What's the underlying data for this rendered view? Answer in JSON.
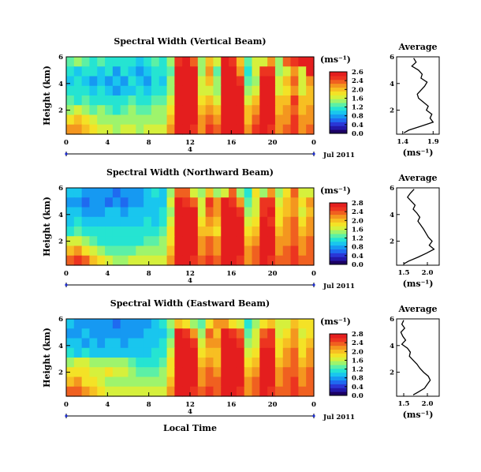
{
  "chart_data": {
    "type": "heatmap",
    "date_label": "Jul 2011",
    "xlabel": "Local Time",
    "colorbar_label": "(ms⁻¹)",
    "colormap": [
      "#1c0064",
      "#2318a8",
      "#2a37d6",
      "#1f6af0",
      "#1699f2",
      "#19c6ee",
      "#25e4d2",
      "#5cf0a6",
      "#9ef46c",
      "#d6f03c",
      "#f4e226",
      "#f7bf22",
      "#f4961f",
      "#f06020",
      "#ec3420",
      "#e41e1e"
    ],
    "panels": [
      {
        "title": "Spectral Width (Vertical Beam)",
        "ylabel": "Height (km)",
        "x_ticks": [
          "0",
          "4",
          "8",
          "12",
          "16",
          "20",
          "0"
        ],
        "x_range": [
          0,
          24
        ],
        "y_ticks": [
          "6",
          "4",
          "2"
        ],
        "y_range": [
          0.2,
          6.0
        ],
        "sub_axis_label": "4",
        "colorbar_ticks": [
          "2.6",
          "2.4",
          "2.0",
          "1.6",
          "1.2",
          "0.8",
          "0.4",
          "0.0"
        ],
        "colorbar_range": [
          0.0,
          2.6
        ],
        "heat_rows": [
          [
            1.2,
            1.3,
            1.2,
            1.1,
            1.2,
            1.1,
            1.0,
            1.1,
            1.0,
            0.9,
            1.0,
            1.2,
            1.1,
            1.4,
            2.4,
            2.6,
            2.2,
            1.4,
            1.9,
            1.6,
            2.5,
            2.3,
            1.8,
            1.2,
            1.5,
            1.6,
            2.1,
            1.4,
            2.2,
            2.4,
            2.5,
            2.6
          ],
          [
            1.0,
            0.9,
            1.1,
            1.0,
            0.9,
            1.0,
            0.8,
            1.0,
            0.9,
            0.8,
            0.9,
            1.0,
            1.0,
            1.2,
            2.5,
            2.6,
            2.5,
            1.3,
            2.0,
            1.2,
            2.6,
            2.5,
            2.0,
            1.0,
            1.5,
            2.4,
            2.3,
            1.3,
            1.6,
            2.0,
            1.6,
            2.6
          ],
          [
            0.9,
            1.0,
            0.9,
            0.8,
            0.9,
            0.8,
            0.9,
            0.8,
            1.0,
            0.9,
            0.8,
            1.0,
            0.9,
            1.3,
            2.6,
            2.6,
            2.6,
            1.6,
            1.8,
            1.3,
            2.6,
            2.6,
            2.4,
            1.2,
            1.4,
            2.5,
            2.6,
            1.6,
            1.8,
            2.2,
            1.5,
            2.0
          ],
          [
            1.0,
            1.1,
            1.0,
            0.9,
            1.0,
            0.9,
            0.8,
            0.9,
            0.9,
            1.0,
            0.9,
            1.1,
            1.0,
            1.4,
            2.6,
            2.6,
            2.6,
            1.5,
            1.6,
            1.4,
            2.6,
            2.6,
            2.6,
            1.4,
            1.6,
            2.6,
            2.5,
            1.5,
            1.7,
            2.1,
            1.6,
            1.8
          ],
          [
            1.2,
            1.1,
            1.2,
            1.0,
            1.1,
            1.0,
            1.0,
            1.1,
            1.2,
            1.1,
            1.0,
            1.2,
            1.2,
            1.6,
            2.6,
            2.6,
            2.6,
            1.7,
            1.8,
            1.6,
            2.6,
            2.6,
            2.6,
            1.5,
            1.9,
            2.6,
            2.6,
            1.8,
            1.9,
            2.3,
            1.8,
            1.9
          ],
          [
            1.4,
            1.5,
            1.3,
            1.2,
            1.3,
            1.2,
            1.1,
            1.2,
            1.3,
            1.2,
            1.2,
            1.3,
            1.3,
            1.7,
            2.6,
            2.6,
            2.6,
            1.9,
            2.0,
            1.8,
            2.6,
            2.6,
            2.6,
            1.8,
            2.1,
            2.6,
            2.6,
            1.9,
            2.0,
            2.2,
            1.9,
            2.0
          ],
          [
            1.7,
            1.8,
            1.7,
            1.5,
            1.4,
            1.3,
            1.3,
            1.4,
            1.4,
            1.3,
            1.3,
            1.4,
            1.4,
            1.8,
            2.6,
            2.6,
            2.5,
            2.0,
            2.2,
            2.1,
            2.6,
            2.6,
            2.6,
            1.9,
            2.2,
            2.6,
            2.5,
            2.0,
            2.1,
            2.3,
            2.0,
            2.1
          ],
          [
            2.0,
            2.1,
            1.9,
            1.7,
            1.6,
            1.5,
            1.4,
            1.5,
            1.5,
            1.4,
            1.5,
            1.5,
            1.6,
            2.0,
            2.5,
            2.6,
            2.4,
            2.1,
            2.3,
            2.2,
            2.6,
            2.6,
            2.5,
            2.0,
            2.3,
            2.6,
            2.4,
            2.1,
            2.2,
            2.3,
            2.1,
            2.2
          ]
        ],
        "average_profile": {
          "title": "Average",
          "xlabel": "(ms⁻¹)",
          "x_ticks": [
            "1.4",
            "1.9"
          ],
          "x_range": [
            1.3,
            2.0
          ],
          "y_ticks": [
            "6",
            "4",
            "2"
          ],
          "y_range": [
            0.2,
            6.0
          ],
          "height": [
            5.9,
            5.6,
            5.3,
            5.0,
            4.7,
            4.4,
            4.1,
            3.8,
            3.5,
            3.2,
            2.9,
            2.6,
            2.3,
            2.0,
            1.7,
            1.4,
            1.1,
            0.8,
            0.5,
            0.3
          ],
          "value": [
            1.58,
            1.62,
            1.55,
            1.66,
            1.72,
            1.7,
            1.8,
            1.76,
            1.7,
            1.64,
            1.66,
            1.74,
            1.82,
            1.79,
            1.88,
            1.85,
            1.9,
            1.7,
            1.5,
            1.42
          ]
        }
      },
      {
        "title": "Spectral Width (Northward Beam)",
        "ylabel": "Height (km)",
        "x_ticks": [
          "0",
          "4",
          "8",
          "12",
          "16",
          "20",
          "0"
        ],
        "x_range": [
          0,
          24
        ],
        "y_ticks": [
          "6",
          "4",
          "2"
        ],
        "y_range": [
          0.2,
          6.0
        ],
        "sub_axis_label": "4",
        "colorbar_ticks": [
          "2.8",
          "2.4",
          "2.0",
          "1.6",
          "1.2",
          "0.8",
          "0.4",
          "0.0"
        ],
        "colorbar_range": [
          0.0,
          2.8
        ],
        "heat_rows": [
          [
            1.0,
            0.9,
            0.7,
            0.8,
            0.8,
            0.7,
            0.6,
            0.7,
            0.8,
            0.8,
            0.9,
            1.1,
            1.0,
            1.5,
            2.4,
            2.3,
            1.7,
            1.4,
            2.0,
            1.5,
            1.7,
            2.3,
            1.5,
            1.1,
            1.8,
            1.4,
            2.2,
            1.4,
            1.9,
            2.3,
            1.6,
            1.7
          ],
          [
            0.8,
            0.7,
            0.6,
            0.7,
            0.8,
            0.6,
            0.7,
            0.6,
            0.7,
            0.8,
            0.9,
            1.0,
            1.0,
            1.6,
            2.7,
            2.6,
            2.4,
            1.6,
            2.6,
            2.2,
            2.7,
            2.6,
            2.2,
            1.3,
            1.6,
            2.5,
            2.6,
            1.7,
            2.0,
            2.2,
            1.8,
            2.2
          ],
          [
            0.9,
            1.0,
            0.8,
            0.7,
            0.8,
            0.9,
            0.9,
            0.8,
            0.9,
            0.9,
            1.0,
            1.0,
            1.1,
            1.5,
            2.8,
            2.8,
            2.7,
            1.7,
            2.4,
            2.2,
            2.8,
            2.8,
            2.6,
            1.5,
            1.7,
            2.6,
            2.7,
            1.8,
            2.0,
            2.1,
            1.7,
            2.0
          ],
          [
            1.0,
            1.1,
            1.0,
            0.9,
            1.0,
            1.0,
            1.0,
            1.0,
            1.0,
            1.0,
            1.1,
            1.0,
            1.2,
            1.7,
            2.8,
            2.8,
            2.8,
            1.8,
            2.2,
            2.0,
            2.8,
            2.8,
            2.7,
            1.6,
            1.8,
            2.8,
            2.6,
            1.9,
            2.2,
            2.3,
            1.9,
            2.1
          ],
          [
            1.2,
            1.3,
            1.1,
            1.1,
            1.1,
            1.1,
            1.1,
            1.1,
            1.1,
            1.1,
            1.2,
            1.2,
            1.3,
            1.8,
            2.8,
            2.8,
            2.8,
            2.0,
            2.0,
            1.9,
            2.8,
            2.8,
            2.8,
            1.8,
            2.0,
            2.8,
            2.7,
            2.0,
            2.1,
            2.4,
            2.0,
            2.2
          ],
          [
            1.6,
            1.7,
            1.5,
            1.3,
            1.2,
            1.2,
            1.2,
            1.2,
            1.2,
            1.2,
            1.3,
            1.3,
            1.4,
            1.9,
            2.8,
            2.8,
            2.8,
            2.1,
            2.3,
            2.1,
            2.8,
            2.8,
            2.8,
            2.0,
            2.2,
            2.8,
            2.8,
            2.1,
            2.2,
            2.4,
            2.1,
            2.3
          ],
          [
            2.0,
            2.2,
            1.9,
            1.6,
            1.4,
            1.3,
            1.3,
            1.3,
            1.3,
            1.4,
            1.4,
            1.4,
            1.5,
            2.0,
            2.8,
            2.8,
            2.8,
            2.2,
            2.4,
            2.2,
            2.8,
            2.8,
            2.7,
            2.1,
            2.3,
            2.8,
            2.7,
            2.2,
            2.3,
            2.5,
            2.2,
            2.3
          ],
          [
            2.4,
            2.5,
            2.3,
            2.0,
            1.8,
            1.6,
            1.5,
            1.5,
            1.6,
            1.6,
            1.6,
            1.6,
            1.7,
            2.2,
            2.7,
            2.8,
            2.6,
            2.3,
            2.5,
            2.4,
            2.8,
            2.8,
            2.6,
            2.2,
            2.4,
            2.8,
            2.6,
            2.3,
            2.4,
            2.5,
            2.3,
            2.4
          ]
        ],
        "average_profile": {
          "title": "Average",
          "xlabel": "(ms⁻¹)",
          "x_ticks": [
            "1.5",
            "2.0"
          ],
          "x_range": [
            1.35,
            2.25
          ],
          "y_ticks": [
            "6",
            "4",
            "2"
          ],
          "y_range": [
            0.2,
            6.0
          ],
          "height": [
            5.9,
            5.6,
            5.3,
            5.0,
            4.7,
            4.4,
            4.1,
            3.8,
            3.5,
            3.2,
            2.9,
            2.6,
            2.3,
            2.0,
            1.7,
            1.4,
            1.1,
            0.8,
            0.5,
            0.3
          ],
          "value": [
            1.72,
            1.64,
            1.58,
            1.66,
            1.74,
            1.7,
            1.78,
            1.84,
            1.8,
            1.86,
            1.92,
            1.97,
            2.02,
            2.1,
            2.04,
            2.14,
            1.98,
            1.8,
            1.6,
            1.5
          ]
        }
      },
      {
        "title": "Spectral Width (Eastward Beam)",
        "ylabel": "Height (km)",
        "x_ticks": [
          "0",
          "4",
          "8",
          "12",
          "16",
          "20",
          "0"
        ],
        "x_range": [
          0,
          24
        ],
        "y_ticks": [
          "6",
          "4",
          "2"
        ],
        "y_range": [
          0.2,
          6.0
        ],
        "sub_axis_label": "4",
        "colorbar_ticks": [
          "2.8",
          "2.4",
          "2.0",
          "1.6",
          "1.2",
          "0.8",
          "0.4",
          "0.0"
        ],
        "colorbar_range": [
          0.0,
          2.8
        ],
        "heat_rows": [
          [
            0.9,
            0.8,
            0.8,
            0.7,
            0.7,
            0.8,
            0.6,
            0.7,
            0.8,
            0.7,
            0.8,
            1.0,
            1.1,
            1.4,
            2.0,
            1.8,
            1.5,
            1.3,
            1.9,
            2.1,
            2.2,
            1.8,
            1.6,
            1.2,
            1.5,
            1.8,
            2.0,
            1.6,
            1.7,
            2.0,
            1.8,
            1.9
          ],
          [
            0.8,
            0.7,
            0.9,
            0.8,
            0.7,
            0.7,
            0.8,
            0.7,
            0.7,
            0.8,
            0.9,
            1.0,
            1.0,
            1.3,
            2.7,
            2.6,
            2.2,
            1.5,
            2.4,
            2.0,
            2.7,
            2.6,
            2.3,
            1.3,
            1.6,
            2.4,
            2.5,
            1.7,
            1.9,
            2.1,
            1.7,
            1.8
          ],
          [
            1.0,
            0.9,
            0.8,
            0.9,
            0.8,
            0.9,
            0.9,
            0.8,
            0.9,
            0.9,
            0.9,
            1.0,
            1.1,
            1.4,
            2.8,
            2.8,
            2.6,
            1.6,
            2.2,
            2.1,
            2.8,
            2.8,
            2.5,
            1.4,
            1.7,
            2.6,
            2.6,
            1.8,
            2.0,
            2.2,
            1.8,
            2.0
          ],
          [
            1.1,
            1.0,
            1.1,
            1.0,
            1.0,
            1.0,
            1.0,
            1.0,
            1.0,
            1.0,
            1.0,
            1.1,
            1.2,
            1.6,
            2.8,
            2.8,
            2.8,
            1.8,
            2.0,
            2.0,
            2.8,
            2.8,
            2.7,
            1.6,
            1.9,
            2.8,
            2.7,
            1.9,
            2.1,
            2.3,
            1.9,
            2.1
          ],
          [
            1.5,
            1.6,
            1.6,
            1.5,
            1.4,
            1.5,
            1.4,
            1.5,
            1.3,
            1.2,
            1.2,
            1.2,
            1.3,
            1.8,
            2.8,
            2.8,
            2.8,
            2.0,
            2.1,
            2.0,
            2.8,
            2.8,
            2.8,
            1.8,
            2.0,
            2.8,
            2.8,
            2.0,
            2.2,
            2.3,
            2.0,
            2.2
          ],
          [
            1.8,
            1.9,
            1.8,
            1.7,
            1.7,
            1.8,
            1.6,
            1.7,
            1.4,
            1.3,
            1.3,
            1.3,
            1.4,
            1.9,
            2.8,
            2.8,
            2.8,
            2.1,
            2.3,
            2.1,
            2.8,
            2.8,
            2.8,
            2.0,
            2.2,
            2.8,
            2.8,
            2.1,
            2.3,
            2.4,
            2.1,
            2.3
          ],
          [
            2.0,
            2.1,
            1.9,
            1.8,
            1.6,
            1.5,
            1.4,
            1.5,
            1.5,
            1.4,
            1.4,
            1.4,
            1.5,
            2.0,
            2.8,
            2.8,
            2.7,
            2.2,
            2.4,
            2.3,
            2.8,
            2.8,
            2.7,
            2.1,
            2.3,
            2.8,
            2.7,
            2.2,
            2.3,
            2.5,
            2.2,
            2.4
          ],
          [
            2.3,
            2.4,
            2.2,
            2.0,
            1.8,
            1.7,
            1.6,
            1.6,
            1.7,
            1.6,
            1.6,
            1.6,
            1.7,
            2.2,
            2.7,
            2.8,
            2.6,
            2.3,
            2.5,
            2.4,
            2.8,
            2.8,
            2.6,
            2.2,
            2.4,
            2.8,
            2.6,
            2.3,
            2.4,
            2.5,
            2.3,
            2.4
          ]
        ],
        "average_profile": {
          "title": "Average",
          "xlabel": "(ms⁻¹)",
          "x_ticks": [
            "1.5",
            "2.0"
          ],
          "x_range": [
            1.35,
            2.25
          ],
          "y_ticks": [
            "6",
            "4",
            "2"
          ],
          "y_range": [
            0.2,
            6.0
          ],
          "height": [
            5.9,
            5.6,
            5.3,
            5.0,
            4.7,
            4.4,
            4.1,
            3.8,
            3.5,
            3.2,
            2.9,
            2.6,
            2.3,
            2.0,
            1.7,
            1.4,
            1.1,
            0.8,
            0.5,
            0.3
          ],
          "value": [
            1.5,
            1.46,
            1.52,
            1.44,
            1.48,
            1.54,
            1.46,
            1.58,
            1.64,
            1.62,
            1.7,
            1.78,
            1.84,
            1.92,
            2.02,
            2.06,
            2.0,
            1.94,
            1.8,
            1.7
          ]
        }
      }
    ]
  }
}
